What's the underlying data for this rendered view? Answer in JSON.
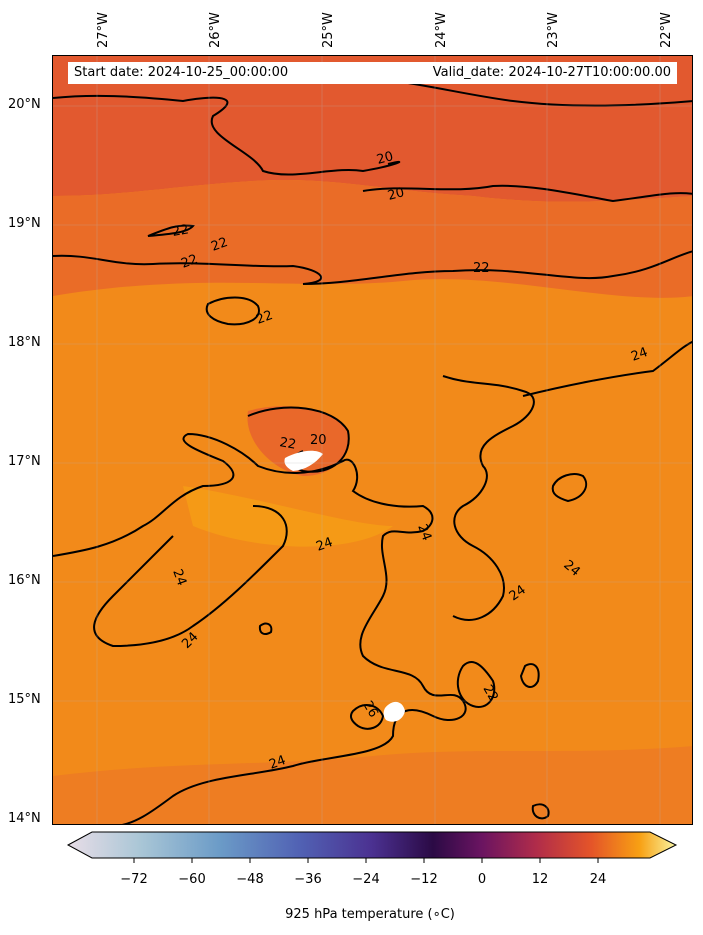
{
  "map": {
    "info_box": {
      "start_date": "Start date: 2024-10-25_00:00:00",
      "valid_date": "Valid_date: 2024-10-27T10:00:00.00"
    },
    "longitude_labels": [
      "27°W",
      "26°W",
      "25°W",
      "24°W",
      "23°W",
      "22°W"
    ],
    "latitude_labels": [
      "20°N",
      "19°N",
      "18°N",
      "17°N",
      "16°N",
      "15°N",
      "14°N"
    ],
    "contour_labels": [
      "20",
      "20",
      "22",
      "22",
      "22",
      "22",
      "22",
      "24",
      "22",
      "20",
      "24",
      "24",
      "24",
      "24",
      "24",
      "26",
      "24",
      "22",
      "24"
    ],
    "field": "925 hPa temperature",
    "colors": {
      "background": "#f28a1a",
      "warm_north": "#e2582f",
      "contour_line": "#000000",
      "missing": "#ffffff"
    }
  },
  "colorbar": {
    "ticks": [
      "−72",
      "−60",
      "−48",
      "−36",
      "−24",
      "−12",
      "0",
      "12",
      "24"
    ],
    "label": "925 hPa temperature (∘C)",
    "colors": [
      "#e8dde7",
      "#a9c6d6",
      "#6b9bc7",
      "#5162b4",
      "#4b3191",
      "#2b0a45",
      "#6a1461",
      "#b02c4a",
      "#e45429",
      "#f8a013",
      "#f9f4a1"
    ]
  }
}
